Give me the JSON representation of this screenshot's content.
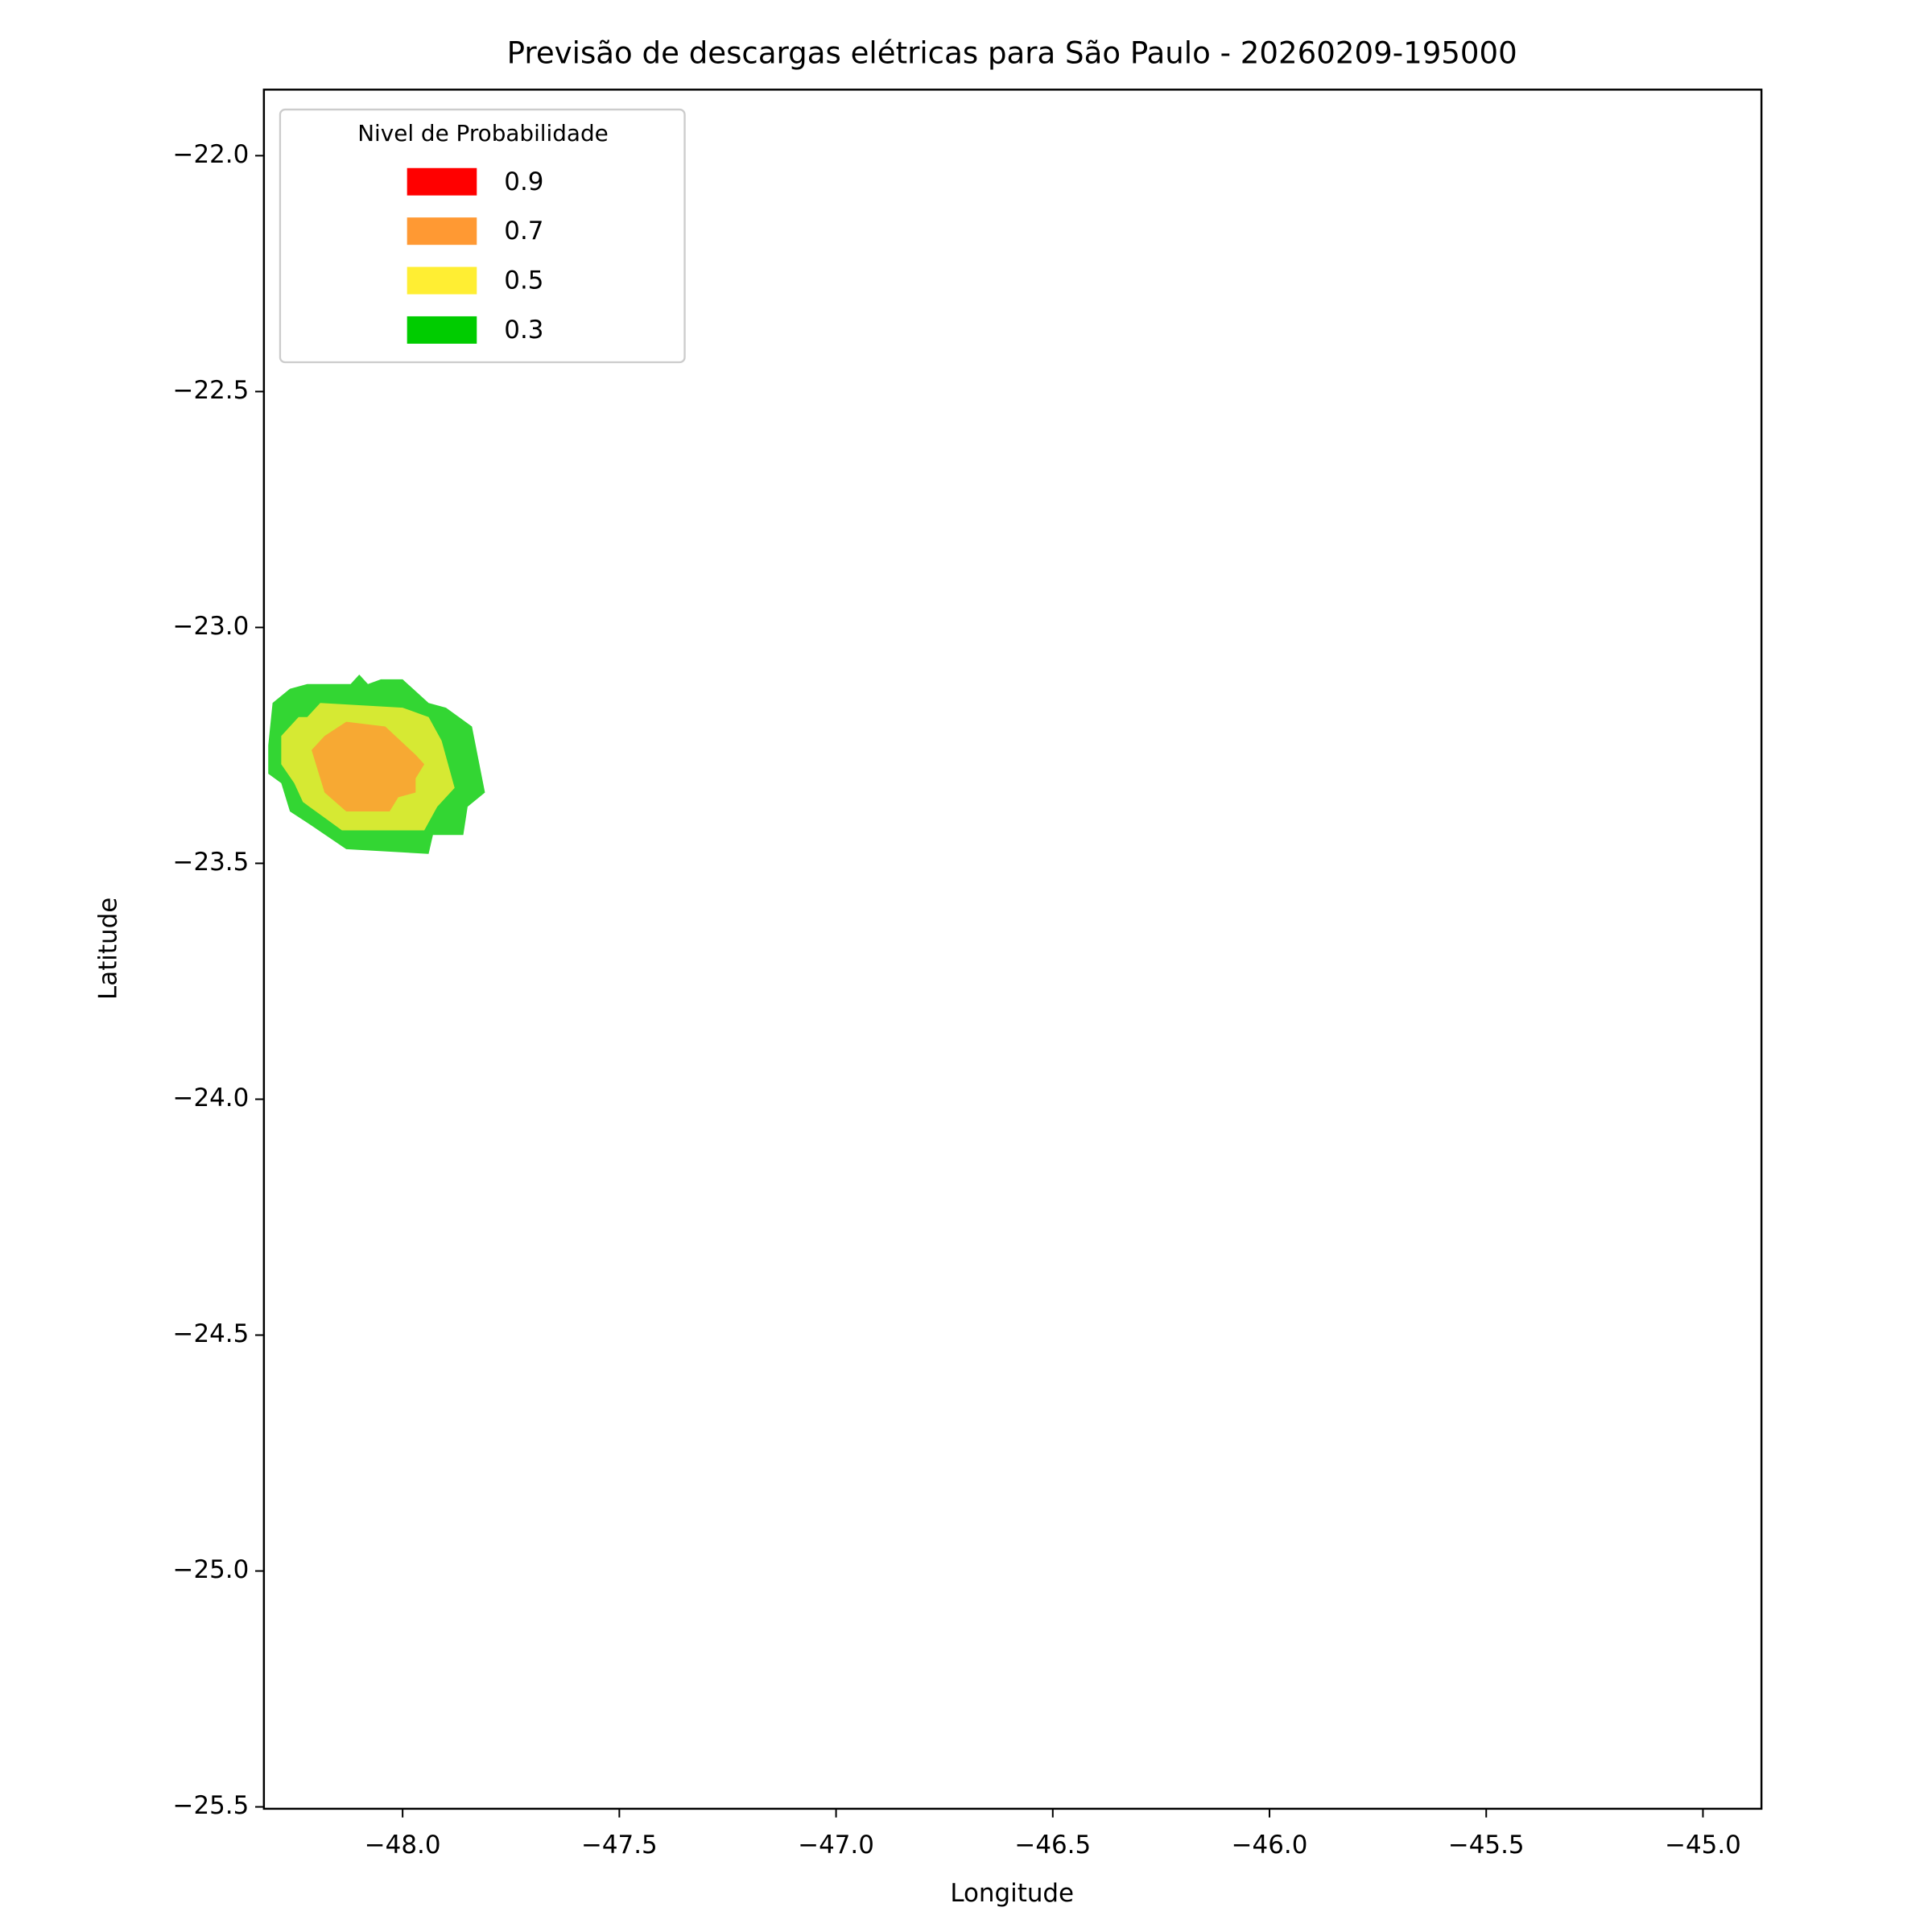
{
  "chart_data": {
    "type": "contour",
    "title": "Previsão de descargas elétricas para São Paulo - 20260209-195000",
    "x_label": "Longitude",
    "y_label": "Latitude",
    "xlim": [
      -48.32,
      -44.865
    ],
    "ylim": [
      -25.504,
      -21.86
    ],
    "xticks": [
      {
        "value": -48.0,
        "label": "−48.0"
      },
      {
        "value": -47.5,
        "label": "−47.5"
      },
      {
        "value": -47.0,
        "label": "−47.0"
      },
      {
        "value": -46.5,
        "label": "−46.5"
      },
      {
        "value": -46.0,
        "label": "−46.0"
      },
      {
        "value": -45.5,
        "label": "−45.5"
      },
      {
        "value": -45.0,
        "label": "−45.0"
      }
    ],
    "yticks": [
      {
        "value": -22.0,
        "label": "−22.0"
      },
      {
        "value": -22.5,
        "label": "−22.5"
      },
      {
        "value": -23.0,
        "label": "−23.0"
      },
      {
        "value": -23.5,
        "label": "−23.5"
      },
      {
        "value": -24.0,
        "label": "−24.0"
      },
      {
        "value": -24.5,
        "label": "−24.5"
      },
      {
        "value": -25.0,
        "label": "−25.0"
      },
      {
        "value": -25.5,
        "label": "−25.5"
      }
    ],
    "legend_title": "Nivel de Probabilidade",
    "legend_position": "upper-left",
    "alpha": 0.8,
    "series": [
      {
        "name": "0.9",
        "color": "#ff0000",
        "polygons": []
      },
      {
        "name": "0.7",
        "color": "#ff9933",
        "polygons": [
          {
            "x": [
              -48.21,
              -48.18,
              -48.13,
              -48.04,
              -47.97,
              -47.95,
              -47.97,
              -47.97,
              -48.01,
              -48.03,
              -48.13,
              -48.18
            ],
            "y": [
              -23.26,
              -23.23,
              -23.2,
              -23.21,
              -23.27,
              -23.29,
              -23.32,
              -23.35,
              -23.36,
              -23.39,
              -23.39,
              -23.35
            ]
          }
        ]
      },
      {
        "name": "0.5",
        "color": "#ffee33",
        "polygons": [
          {
            "x": [
              -48.28,
              -48.24,
              -48.22,
              -48.19,
              -48.0,
              -47.94,
              -47.91,
              -47.88,
              -47.92,
              -47.95,
              -48.14,
              -48.23,
              -48.25,
              -48.28
            ],
            "y": [
              -23.23,
              -23.19,
              -23.19,
              -23.16,
              -23.17,
              -23.19,
              -23.24,
              -23.34,
              -23.38,
              -23.43,
              -23.43,
              -23.37,
              -23.33,
              -23.29
            ]
          }
        ]
      },
      {
        "name": "0.3",
        "color": "#00cc00",
        "polygons": [
          {
            "x": [
              -48.31,
              -48.3,
              -48.26,
              -48.22,
              -48.12,
              -48.1,
              -48.08,
              -48.05,
              -48.0,
              -47.94,
              -47.9,
              -47.84,
              -47.81,
              -47.85,
              -47.86,
              -47.93,
              -47.94,
              -48.13,
              -48.21,
              -48.26,
              -48.28,
              -48.31
            ],
            "y": [
              -23.25,
              -23.16,
              -23.13,
              -23.12,
              -23.12,
              -23.1,
              -23.12,
              -23.11,
              -23.11,
              -23.16,
              -23.17,
              -23.21,
              -23.35,
              -23.38,
              -23.44,
              -23.44,
              -23.48,
              -23.47,
              -23.42,
              -23.39,
              -23.33,
              -23.31
            ]
          }
        ]
      }
    ]
  }
}
